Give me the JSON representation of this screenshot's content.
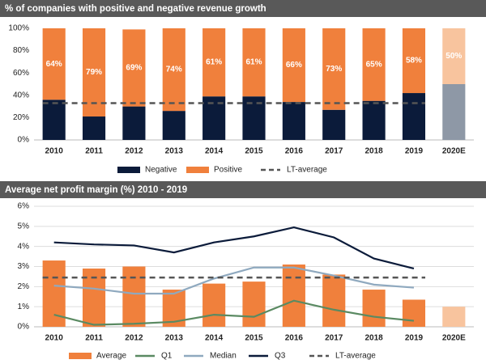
{
  "chart_data": [
    {
      "type": "bar",
      "stacked": true,
      "title": "% of companies with positive and negative revenue growth",
      "categories": [
        "2010",
        "2011",
        "2012",
        "2013",
        "2014",
        "2015",
        "2016",
        "2017",
        "2018",
        "2019",
        "2020E"
      ],
      "ylim": [
        0,
        100
      ],
      "yticks": [
        {
          "value": 0,
          "label": "0%"
        },
        {
          "value": 20,
          "label": "20%"
        },
        {
          "value": 40,
          "label": "40%"
        },
        {
          "value": 60,
          "label": "60%"
        },
        {
          "value": 80,
          "label": "80%"
        },
        {
          "value": 100,
          "label": "100%"
        }
      ],
      "grid": false,
      "series": [
        {
          "name": "Negative",
          "type": "bar",
          "color": "#0b1b3a",
          "colors": [
            "#0b1b3a",
            "#0b1b3a",
            "#0b1b3a",
            "#0b1b3a",
            "#0b1b3a",
            "#0b1b3a",
            "#0b1b3a",
            "#0b1b3a",
            "#0b1b3a",
            "#0b1b3a",
            "#8e98a6"
          ],
          "values": [
            36,
            21,
            30,
            26,
            39,
            39,
            34,
            27,
            35,
            42,
            50
          ]
        },
        {
          "name": "Positive",
          "type": "bar",
          "color": "#f0803c",
          "colors": [
            "#f0803c",
            "#f0803c",
            "#f0803c",
            "#f0803c",
            "#f0803c",
            "#f0803c",
            "#f0803c",
            "#f0803c",
            "#f0803c",
            "#f0803c",
            "#f8c49e"
          ],
          "values": [
            64,
            79,
            69,
            74,
            61,
            61,
            66,
            73,
            65,
            58,
            50
          ],
          "value_labels": [
            "64%",
            "79%",
            "69%",
            "74%",
            "61%",
            "61%",
            "66%",
            "73%",
            "65%",
            "58%",
            "50%"
          ]
        },
        {
          "name": "LT-average",
          "type": "line",
          "dashed": true,
          "color": "#555555",
          "values": [
            33,
            33,
            33,
            33,
            33,
            33,
            33,
            33,
            33,
            33,
            null
          ]
        }
      ]
    },
    {
      "type": "combo",
      "stacked": false,
      "title": "Average net profit margin (%) 2010 - 2019",
      "categories": [
        "2010",
        "2011",
        "2012",
        "2013",
        "2014",
        "2015",
        "2016",
        "2017",
        "2018",
        "2019",
        "2020E"
      ],
      "ylim": [
        0,
        6
      ],
      "yticks": [
        {
          "value": 0,
          "label": "0%"
        },
        {
          "value": 1,
          "label": "1%"
        },
        {
          "value": 2,
          "label": "2%"
        },
        {
          "value": 3,
          "label": "3%"
        },
        {
          "value": 4,
          "label": "4%"
        },
        {
          "value": 5,
          "label": "5%"
        },
        {
          "value": 6,
          "label": "6%"
        }
      ],
      "grid": true,
      "series": [
        {
          "name": "Average",
          "type": "bar",
          "color": "#f0803c",
          "colors": [
            "#f0803c",
            "#f0803c",
            "#f0803c",
            "#f0803c",
            "#f0803c",
            "#f0803c",
            "#f0803c",
            "#f0803c",
            "#f0803c",
            "#f0803c",
            "#f8c49e"
          ],
          "values": [
            3.3,
            2.9,
            3.0,
            1.85,
            2.15,
            2.25,
            3.1,
            2.6,
            1.85,
            1.35,
            1.0
          ]
        },
        {
          "name": "Q1",
          "type": "line",
          "color": "#5a8a62",
          "values": [
            0.6,
            0.1,
            0.15,
            0.25,
            0.6,
            0.5,
            1.3,
            0.85,
            0.5,
            0.3,
            null
          ]
        },
        {
          "name": "Median",
          "type": "line",
          "color": "#8fa9bf",
          "values": [
            2.05,
            1.9,
            1.65,
            1.65,
            2.4,
            2.95,
            2.95,
            2.55,
            2.1,
            1.95,
            null
          ]
        },
        {
          "name": "Q3",
          "type": "line",
          "color": "#0b1b3a",
          "values": [
            4.2,
            4.1,
            4.05,
            3.7,
            4.2,
            4.5,
            4.95,
            4.45,
            3.4,
            2.9,
            null
          ]
        },
        {
          "name": "LT-average",
          "type": "line",
          "dashed": true,
          "color": "#555555",
          "values": [
            2.45,
            2.45,
            2.45,
            2.45,
            2.45,
            2.45,
            2.45,
            2.45,
            2.45,
            2.45,
            null
          ]
        }
      ]
    }
  ]
}
